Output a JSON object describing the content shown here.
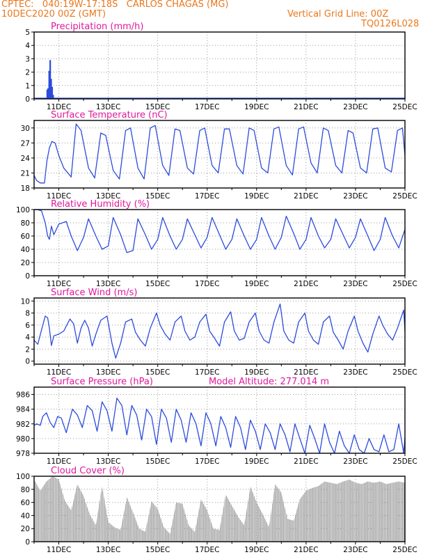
{
  "header": {
    "line1": "CPTEC:   040:19W-17:18S   CARLOS CHAGAS (MG)",
    "line2_left": "10DEC2020 00Z (GMT)",
    "line2_right": "Vertical Grid Line: 00Z",
    "line3_right": "TQ0126L028"
  },
  "colors": {
    "header": "#e8781e",
    "title": "#e0189e",
    "line": "#2c4bdc",
    "bar": "#2c4bdc",
    "cloud": "#a8a8a8",
    "grid": "#9a9a9a"
  },
  "chart_data": [
    {
      "type": "bar",
      "title": "Precipitation (mm/h)",
      "ylim": [
        0,
        5
      ],
      "yticks": [
        0,
        1,
        2,
        3,
        4,
        5
      ],
      "xlim": [
        0,
        15
      ],
      "xticks": [
        1,
        3,
        5,
        7,
        9,
        11,
        13,
        15
      ],
      "xtick_labels": [
        "11DEC",
        "13DEC",
        "15DEC",
        "17DEC",
        "19DEC",
        "21DEC",
        "23DEC",
        "25DEC"
      ],
      "grid": true,
      "x": [
        0.5,
        0.54,
        0.58,
        0.62,
        0.66,
        0.7,
        0.74
      ],
      "values": [
        0.7,
        0.8,
        2.1,
        2.9,
        1.5,
        0.9,
        0.3
      ],
      "baseline": 0.05
    },
    {
      "type": "line",
      "title": "Surface Temperature (nC)",
      "ylim": [
        18,
        31.5
      ],
      "yticks": [
        18,
        21,
        24,
        27,
        30
      ],
      "xlim": [
        0,
        15
      ],
      "xticks": [
        1,
        3,
        5,
        7,
        9,
        11,
        13,
        15
      ],
      "xtick_labels": [
        "11DEC",
        "13DEC",
        "15DEC",
        "17DEC",
        "19DEC",
        "21DEC",
        "23DEC",
        "25DEC"
      ],
      "grid": true,
      "x": [
        0,
        0.1,
        0.25,
        0.42,
        0.52,
        0.62,
        0.72,
        0.85,
        1.0,
        1.2,
        1.5,
        1.7,
        1.9,
        2.2,
        2.45,
        2.7,
        2.9,
        3.2,
        3.45,
        3.7,
        3.9,
        4.2,
        4.45,
        4.7,
        4.9,
        5.2,
        5.45,
        5.7,
        5.9,
        6.2,
        6.45,
        6.7,
        6.9,
        7.2,
        7.45,
        7.7,
        7.9,
        8.2,
        8.45,
        8.7,
        8.9,
        9.2,
        9.45,
        9.7,
        9.9,
        10.2,
        10.45,
        10.7,
        10.9,
        11.2,
        11.45,
        11.7,
        11.9,
        12.2,
        12.45,
        12.7,
        12.9,
        13.2,
        13.45,
        13.7,
        13.9,
        14.2,
        14.45,
        14.7,
        14.9,
        15.0
      ],
      "values": [
        20.5,
        19.5,
        19.0,
        19.0,
        23.5,
        26.0,
        27.3,
        27.0,
        24.5,
        22.0,
        20.2,
        30.8,
        29.5,
        22.0,
        20.0,
        29.0,
        28.5,
        21.5,
        19.8,
        29.5,
        30.0,
        22.0,
        19.8,
        30.0,
        30.5,
        22.5,
        20.5,
        29.8,
        29.5,
        22.0,
        20.8,
        29.5,
        30.0,
        22.5,
        21.0,
        29.8,
        29.8,
        22.5,
        20.8,
        30.0,
        29.5,
        22.0,
        21.0,
        29.8,
        30.2,
        22.5,
        20.6,
        29.8,
        30.2,
        23.0,
        21.0,
        30.0,
        29.5,
        22.5,
        21.0,
        29.5,
        29.0,
        22.0,
        21.0,
        29.8,
        30.0,
        22.0,
        21.2,
        29.5,
        30.0,
        24.5
      ]
    },
    {
      "type": "line",
      "title": "Relative Humidity (%)",
      "ylim": [
        0,
        100
      ],
      "yticks": [
        0,
        20,
        40,
        60,
        80,
        100
      ],
      "xlim": [
        0,
        15
      ],
      "xticks": [
        1,
        3,
        5,
        7,
        9,
        11,
        13,
        15
      ],
      "xtick_labels": [
        "11DEC",
        "13DEC",
        "15DEC",
        "17DEC",
        "19DEC",
        "21DEC",
        "23DEC",
        "25DEC"
      ],
      "grid": true,
      "x": [
        0,
        0.15,
        0.3,
        0.45,
        0.55,
        0.62,
        0.7,
        0.8,
        1.0,
        1.15,
        1.3,
        1.5,
        1.75,
        2.0,
        2.2,
        2.5,
        2.75,
        3.0,
        3.2,
        3.5,
        3.75,
        4.0,
        4.2,
        4.5,
        4.75,
        5.0,
        5.2,
        5.5,
        5.75,
        6.0,
        6.2,
        6.5,
        6.75,
        7.0,
        7.2,
        7.5,
        7.75,
        8.0,
        8.2,
        8.5,
        8.75,
        9.0,
        9.2,
        9.5,
        9.75,
        10.0,
        10.2,
        10.5,
        10.75,
        11.0,
        11.2,
        11.5,
        11.75,
        12.0,
        12.2,
        12.5,
        12.75,
        13.0,
        13.2,
        13.5,
        13.75,
        14.0,
        14.2,
        14.5,
        14.75,
        15.0
      ],
      "values": [
        100,
        100,
        98,
        80,
        60,
        55,
        75,
        62,
        78,
        80,
        82,
        60,
        38,
        58,
        86,
        60,
        40,
        45,
        88,
        62,
        35,
        38,
        86,
        62,
        40,
        55,
        88,
        60,
        40,
        55,
        86,
        62,
        42,
        58,
        88,
        62,
        40,
        55,
        86,
        60,
        40,
        55,
        88,
        60,
        40,
        58,
        90,
        64,
        40,
        55,
        88,
        60,
        42,
        55,
        86,
        62,
        42,
        58,
        86,
        60,
        38,
        55,
        88,
        60,
        42,
        70
      ]
    },
    {
      "type": "line",
      "title": "Surface Wind (m/s)",
      "ylim": [
        -0.5,
        10.5
      ],
      "yticks": [
        0,
        2,
        4,
        6,
        8,
        10
      ],
      "xlim": [
        0,
        15
      ],
      "xticks": [
        1,
        3,
        5,
        7,
        9,
        11,
        13,
        15
      ],
      "xtick_labels": [
        "11DEC",
        "13DEC",
        "15DEC",
        "17DEC",
        "19DEC",
        "21DEC",
        "23DEC",
        "25DEC"
      ],
      "grid": true,
      "x": [
        0,
        0.15,
        0.3,
        0.45,
        0.55,
        0.62,
        0.7,
        0.8,
        1.0,
        1.2,
        1.45,
        1.6,
        1.75,
        1.9,
        2.05,
        2.2,
        2.35,
        2.5,
        2.7,
        2.95,
        3.15,
        3.3,
        3.5,
        3.7,
        3.95,
        4.1,
        4.3,
        4.5,
        4.7,
        4.95,
        5.1,
        5.3,
        5.5,
        5.7,
        5.95,
        6.1,
        6.3,
        6.5,
        6.7,
        6.95,
        7.1,
        7.3,
        7.5,
        7.7,
        7.95,
        8.1,
        8.3,
        8.5,
        8.7,
        8.95,
        9.1,
        9.3,
        9.5,
        9.7,
        9.95,
        10.1,
        10.3,
        10.5,
        10.7,
        10.95,
        11.1,
        11.3,
        11.5,
        11.7,
        11.95,
        12.1,
        12.3,
        12.5,
        12.7,
        12.95,
        13.1,
        13.3,
        13.5,
        13.7,
        13.95,
        14.1,
        14.3,
        14.5,
        14.7,
        14.95,
        15.0
      ],
      "values": [
        3.5,
        2.8,
        5.2,
        7.5,
        7.2,
        5.5,
        2.6,
        4.2,
        4.5,
        5.0,
        7.0,
        6.2,
        3.0,
        5.5,
        6.8,
        5.5,
        2.5,
        4.5,
        6.8,
        7.5,
        3.0,
        0.5,
        3.0,
        6.5,
        7.0,
        4.8,
        3.5,
        2.5,
        5.5,
        8.0,
        6.0,
        4.5,
        3.5,
        6.5,
        7.5,
        5.0,
        3.5,
        4.0,
        6.5,
        7.8,
        5.0,
        3.8,
        2.5,
        6.5,
        8.2,
        5.0,
        3.5,
        3.8,
        6.5,
        8.0,
        5.0,
        3.5,
        3.0,
        6.5,
        9.5,
        5.0,
        3.5,
        3.0,
        6.5,
        8.0,
        5.0,
        3.5,
        2.8,
        6.5,
        7.5,
        4.8,
        3.5,
        2.0,
        5.0,
        7.5,
        5.0,
        3.0,
        1.5,
        4.5,
        7.5,
        6.0,
        4.5,
        3.5,
        5.5,
        8.5,
        5.0
      ]
    },
    {
      "type": "line",
      "title": "Surface Pressure (hPa)",
      "annotation": "Model Altitude: 277.014 m",
      "ylim": [
        978,
        987
      ],
      "yticks": [
        978,
        980,
        982,
        984,
        986
      ],
      "xlim": [
        0,
        15
      ],
      "xticks": [
        1,
        3,
        5,
        7,
        9,
        11,
        13,
        15
      ],
      "xtick_labels": [
        "11DEC",
        "13DEC",
        "15DEC",
        "17DEC",
        "19DEC",
        "21DEC",
        "23DEC",
        "25DEC"
      ],
      "grid": true,
      "x": [
        0,
        0.1,
        0.25,
        0.35,
        0.5,
        0.65,
        0.8,
        0.95,
        1.1,
        1.3,
        1.55,
        1.75,
        1.95,
        2.15,
        2.35,
        2.55,
        2.75,
        2.95,
        3.15,
        3.35,
        3.55,
        3.75,
        3.95,
        4.15,
        4.35,
        4.55,
        4.75,
        4.95,
        5.15,
        5.35,
        5.55,
        5.75,
        5.95,
        6.15,
        6.35,
        6.55,
        6.75,
        6.95,
        7.15,
        7.35,
        7.55,
        7.75,
        7.95,
        8.15,
        8.35,
        8.55,
        8.75,
        8.95,
        9.15,
        9.35,
        9.55,
        9.75,
        9.95,
        10.15,
        10.35,
        10.55,
        10.75,
        10.95,
        11.15,
        11.35,
        11.55,
        11.75,
        11.95,
        12.15,
        12.35,
        12.55,
        12.75,
        12.95,
        13.15,
        13.35,
        13.55,
        13.75,
        13.95,
        14.15,
        14.35,
        14.55,
        14.75,
        14.95,
        15.0
      ],
      "values": [
        981.8,
        982.0,
        981.8,
        983.0,
        983.5,
        982.2,
        981.5,
        983.0,
        982.8,
        980.8,
        984.0,
        983.2,
        981.5,
        984.5,
        983.8,
        981.0,
        985.0,
        983.8,
        981.0,
        985.5,
        984.5,
        980.5,
        984.5,
        983.2,
        979.8,
        984.0,
        983.0,
        979.2,
        984.0,
        982.8,
        979.5,
        984.0,
        982.5,
        979.5,
        983.5,
        982.0,
        979.0,
        983.5,
        982.0,
        979.0,
        983.0,
        981.5,
        978.8,
        983.0,
        981.5,
        978.5,
        982.5,
        981.0,
        978.5,
        982.0,
        980.8,
        978.5,
        982.0,
        980.5,
        978.2,
        982.0,
        980.0,
        978.0,
        981.8,
        980.0,
        978.0,
        982.0,
        979.5,
        978.0,
        981.0,
        979.0,
        978.0,
        980.5,
        978.5,
        978.0,
        980.0,
        978.5,
        978.2,
        980.5,
        978.2,
        978.5,
        982.0,
        978.0,
        980.2
      ]
    },
    {
      "type": "area",
      "title": "Cloud Cover (%)",
      "ylim": [
        0,
        100
      ],
      "yticks": [
        0,
        20,
        40,
        60,
        80,
        100
      ],
      "xlim": [
        0,
        15
      ],
      "xticks": [
        1,
        3,
        5,
        7,
        9,
        11,
        13,
        15
      ],
      "xtick_labels": [
        "11DEC",
        "13DEC",
        "15DEC",
        "17DEC",
        "19DEC",
        "21DEC",
        "23DEC",
        "25DEC"
      ],
      "grid": true,
      "x": [
        0,
        0.25,
        0.5,
        0.75,
        1.0,
        1.25,
        1.5,
        1.75,
        2.0,
        2.25,
        2.5,
        2.75,
        3.0,
        3.25,
        3.5,
        3.75,
        4.0,
        4.25,
        4.5,
        4.75,
        5.0,
        5.25,
        5.5,
        5.75,
        6.0,
        6.25,
        6.5,
        6.75,
        7.0,
        7.25,
        7.5,
        7.75,
        8.0,
        8.25,
        8.5,
        8.75,
        9.0,
        9.25,
        9.5,
        9.75,
        10.0,
        10.25,
        10.5,
        10.75,
        11.0,
        11.25,
        11.5,
        11.75,
        12.0,
        12.25,
        12.5,
        12.75,
        13.0,
        13.25,
        13.5,
        13.75,
        14.0,
        14.25,
        14.5,
        14.75,
        15.0
      ],
      "values": [
        95,
        78,
        92,
        100,
        95,
        62,
        48,
        88,
        70,
        42,
        25,
        85,
        30,
        22,
        18,
        68,
        45,
        20,
        15,
        62,
        50,
        22,
        12,
        60,
        58,
        25,
        15,
        65,
        48,
        20,
        18,
        72,
        55,
        38,
        25,
        85,
        60,
        42,
        22,
        88,
        75,
        35,
        32,
        65,
        78,
        82,
        85,
        92,
        90,
        88,
        92,
        95,
        90,
        88,
        92,
        90,
        92,
        88,
        90,
        92,
        90
      ]
    }
  ]
}
